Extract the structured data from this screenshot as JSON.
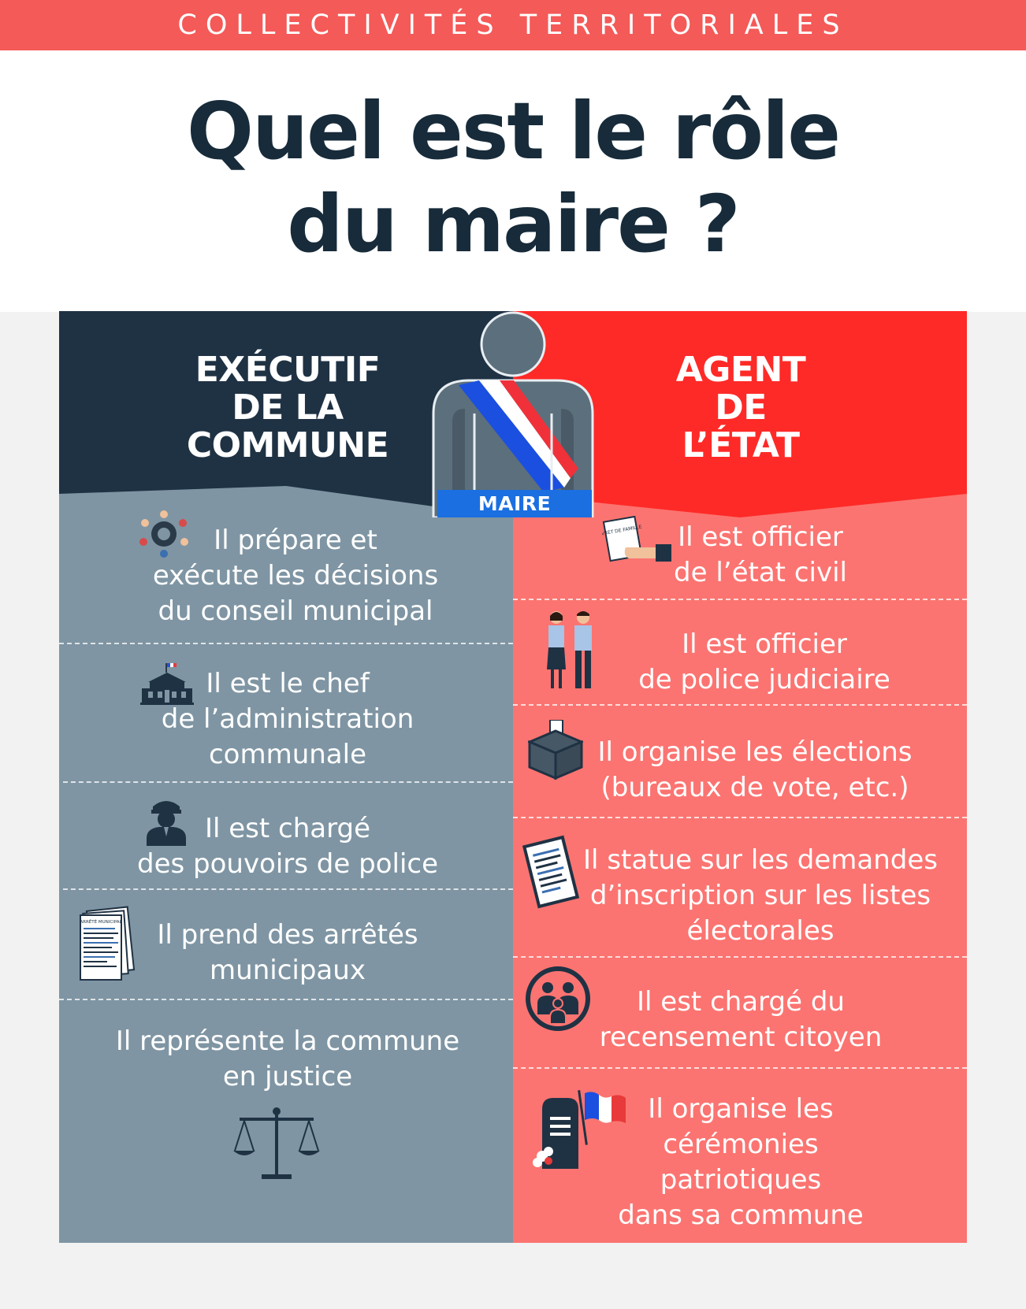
{
  "banner": "COLLECTIVITÉS TERRITORIALES",
  "title": {
    "line1": "Quel est le rôle",
    "line2": "du maire ?"
  },
  "badge": "MAIRE",
  "left_column": {
    "heading": [
      "EXÉCUTIF",
      "DE LA",
      "COMMUNE"
    ],
    "items": [
      {
        "lines": [
          "Il prépare et",
          "exécute les décisions",
          "du conseil municipal"
        ],
        "icon": "council-icon"
      },
      {
        "lines": [
          "Il est le chef",
          "de l’administration",
          "communale"
        ],
        "icon": "town-hall-icon"
      },
      {
        "lines": [
          "Il est chargé",
          "des pouvoirs de police"
        ],
        "icon": "police-officer-icon"
      },
      {
        "lines": [
          "Il prend des arrêtés",
          "municipaux"
        ],
        "icon": "decree-icon",
        "icon_text": "ARRÊTÉ MUNICIPAL"
      },
      {
        "lines": [
          "Il représente la commune",
          "en justice"
        ],
        "icon": "scales-icon"
      }
    ]
  },
  "right_column": {
    "heading": [
      "AGENT",
      "DE",
      "L’ÉTAT"
    ],
    "items": [
      {
        "lines": [
          "Il est officier",
          "de l’état civil"
        ],
        "icon": "family-booklet-icon",
        "icon_text": "LIVRET DE FAMILLE"
      },
      {
        "lines": [
          "Il est officier",
          "de police judiciaire"
        ],
        "icon": "police-officers-icon"
      },
      {
        "lines": [
          "Il organise les élections",
          "(bureaux de vote, etc.)"
        ],
        "icon": "ballot-box-icon"
      },
      {
        "lines": [
          "Il statue sur les demandes",
          "d’inscription sur les listes",
          "électorales"
        ],
        "icon": "electoral-list-icon"
      },
      {
        "lines": [
          "Il est chargé du",
          "recensement citoyen"
        ],
        "icon": "family-icon"
      },
      {
        "lines": [
          "Il organise les",
          "cérémonies",
          "patriotiques",
          "dans sa commune"
        ],
        "icon": "memorial-flag-icon"
      }
    ]
  },
  "colors": {
    "banner": "#f45a58",
    "title": "#172b3a",
    "left_header": "#1f3244",
    "left_body": "#7f95a3",
    "right_header": "#fe2a27",
    "right_body": "#fb7471",
    "badge": "#1b6fe0"
  }
}
